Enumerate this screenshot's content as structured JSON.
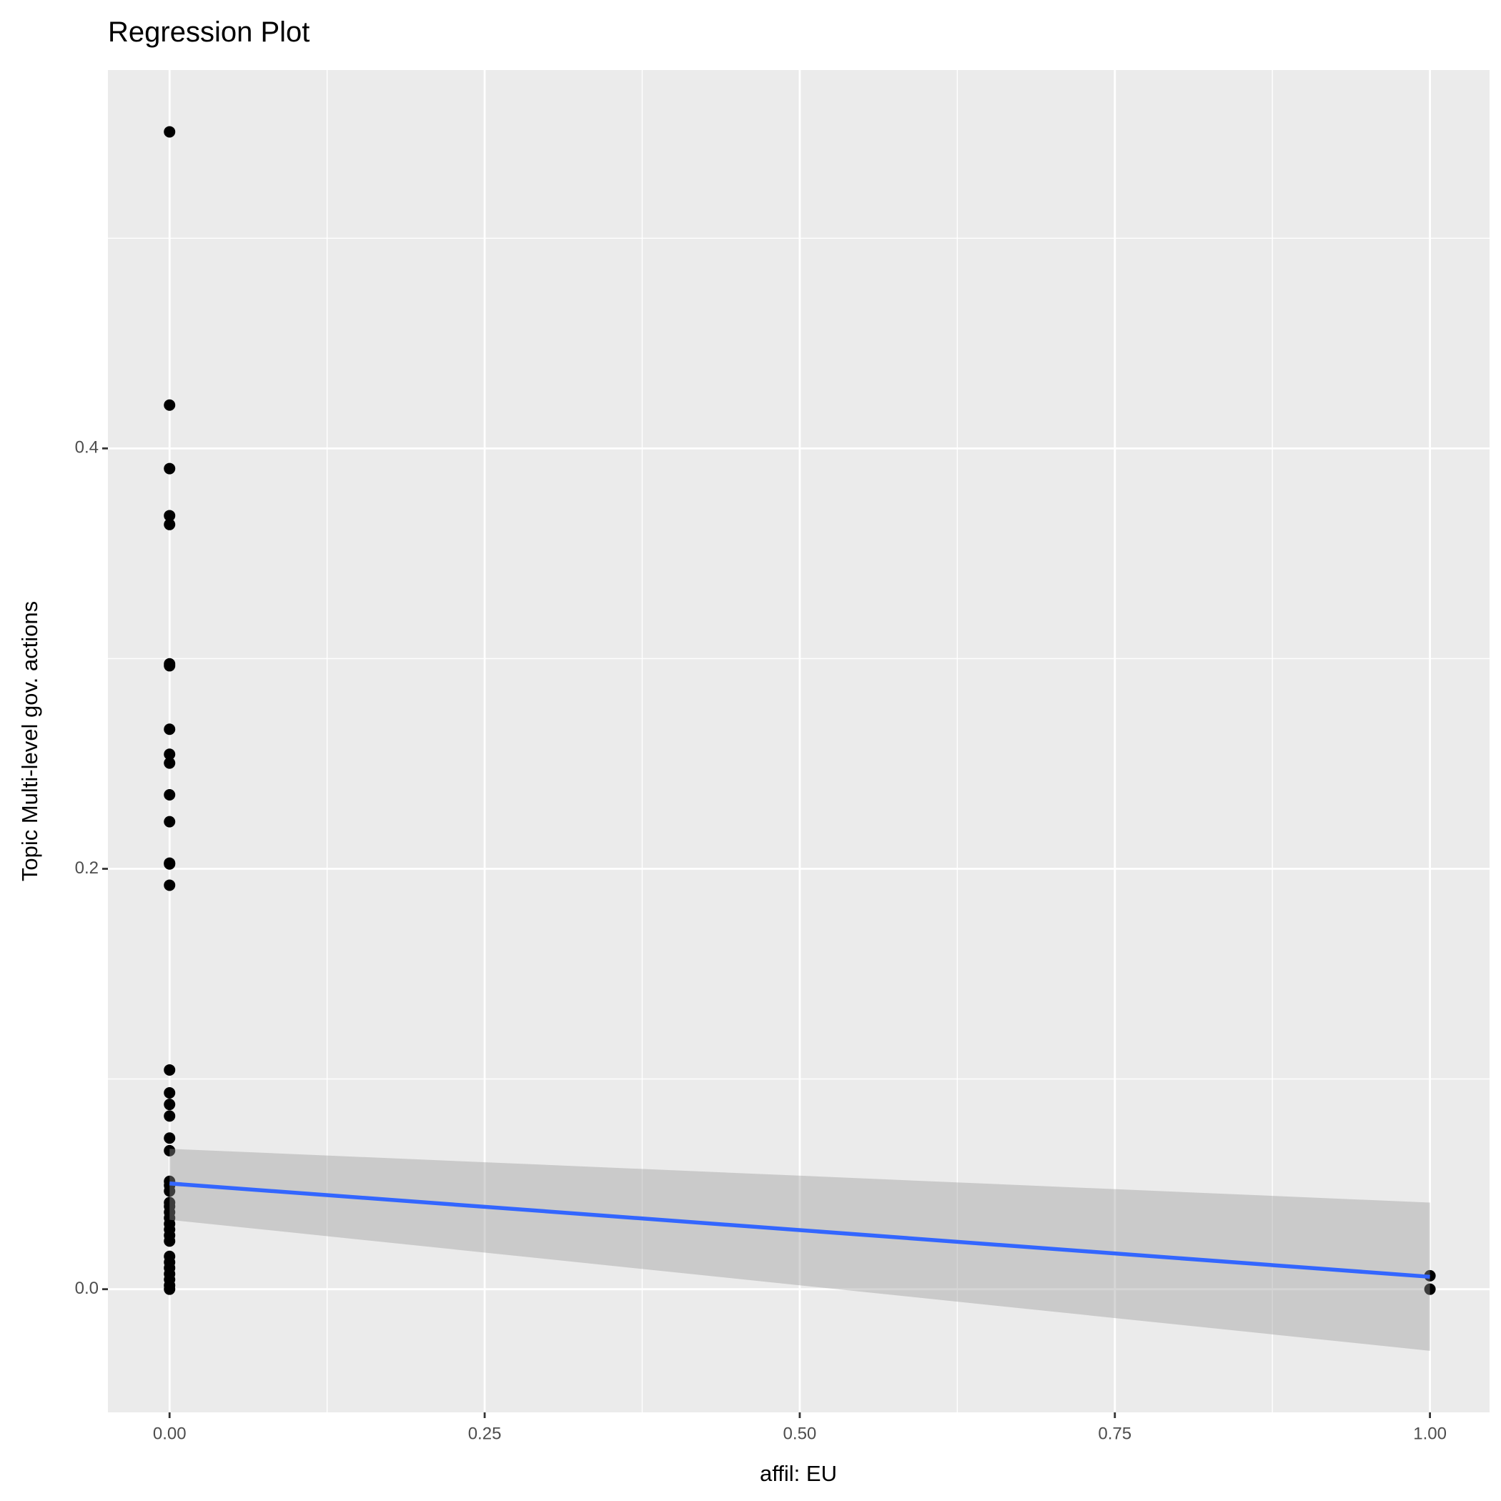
{
  "chart_data": {
    "type": "scatter",
    "title": "Regression Plot",
    "x_label": "affil: EU",
    "y_label": "Topic Multi-level gov. actions",
    "xlim": [
      -0.0489,
      1.0473
    ],
    "ylim": [
      -0.0586,
      0.58
    ],
    "xticks": [
      {
        "value": 0,
        "label": "0.00"
      },
      {
        "value": 0.25,
        "label": "0.25"
      },
      {
        "value": 0.5,
        "label": "0.50"
      },
      {
        "value": 0.75,
        "label": "0.75"
      },
      {
        "value": 1,
        "label": "1.00"
      }
    ],
    "yticks": [
      {
        "value": 0,
        "label": "0.0"
      },
      {
        "value": 0.2,
        "label": "0.2"
      },
      {
        "value": 0.4,
        "label": "0.4"
      }
    ],
    "grid": true,
    "minor_grid": true,
    "point_color": "#000000",
    "x": [
      0,
      0,
      0,
      0,
      0,
      0,
      0,
      0,
      0,
      0,
      0,
      0,
      0,
      0,
      0,
      0,
      0,
      0,
      0,
      0,
      0,
      0,
      0,
      0,
      0,
      0,
      0,
      0,
      0,
      0,
      0,
      0,
      0,
      0,
      0,
      0,
      0,
      0,
      0,
      1,
      1
    ],
    "y": [
      0.5506,
      0.4206,
      0.3904,
      0.368,
      0.3638,
      0.2975,
      0.2966,
      0.2664,
      0.2545,
      0.2503,
      0.2352,
      0.2224,
      0.2027,
      0.2023,
      0.1922,
      0.1043,
      0.0934,
      0.0879,
      0.0824,
      0.0719,
      0.0659,
      0.0513,
      0.0494,
      0.0467,
      0.0412,
      0.0394,
      0.0366,
      0.0339,
      0.0311,
      0.0284,
      0.0256,
      0.0229,
      0.0156,
      0.0128,
      0.0101,
      0.0073,
      0.0046,
      0.0018,
      0,
      0.0064,
      0
    ],
    "fit": {
      "color": "#3366ff",
      "band_color": "#999999",
      "x": [
        0,
        1
      ],
      "y": [
        0.0503,
        0.0059
      ],
      "lower": [
        0.033,
        -0.0293
      ],
      "upper": [
        0.0668,
        0.0412
      ]
    }
  }
}
